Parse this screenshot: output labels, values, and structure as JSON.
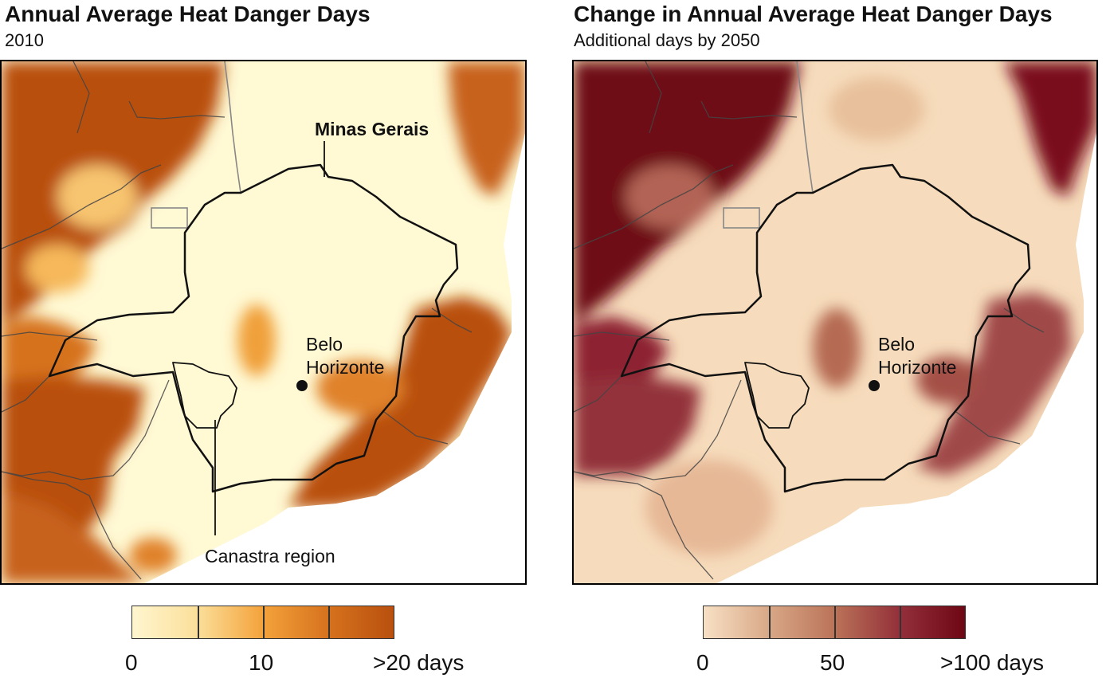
{
  "left_panel": {
    "title": "Annual Average Heat Danger Days",
    "subtitle": "2010",
    "labels": {
      "state": "Minas Gerais",
      "city_line1": "Belo",
      "city_line2": "Horizonte",
      "region": "Canastra region"
    },
    "colors": {
      "low": "#fffbd6",
      "mid": "#f6a93a",
      "high": "#b9500f"
    },
    "legend": {
      "min": "0",
      "mid": "10",
      "max": ">20 days",
      "stops": [
        "#fff6cf",
        "#fbdf9a",
        "#f4a23b",
        "#d6721d",
        "#b9500f"
      ]
    }
  },
  "right_panel": {
    "title": "Change in Annual Average Heat Danger Days",
    "subtitle": "Additional days by 2050",
    "labels": {
      "city_line1": "Belo",
      "city_line2": "Horizonte"
    },
    "colors": {
      "low": "#f6dcbc",
      "mid": "#c98a66",
      "high": "#6e0714"
    },
    "legend": {
      "min": "0",
      "mid": "50",
      "max": ">100 days",
      "stops": [
        "#f8e0c4",
        "#d8a887",
        "#bb7358",
        "#93303a",
        "#6e0714"
      ]
    }
  }
}
